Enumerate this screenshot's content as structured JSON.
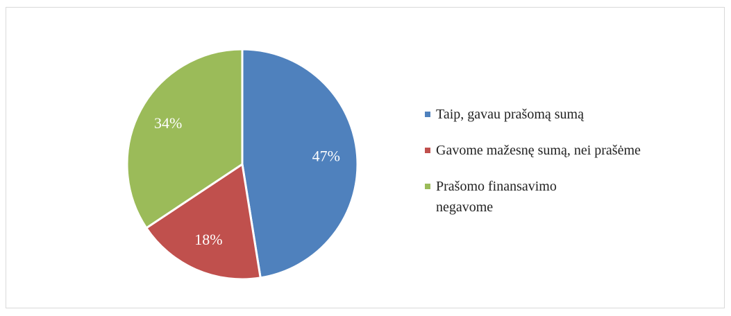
{
  "chart_data": {
    "type": "pie",
    "categories": [
      "Taip, gavau prašomą sumą",
      "Gavome mažesnę sumą, nei prašėme",
      "Prašomo finansavimo negavome"
    ],
    "values": [
      47,
      18,
      34
    ],
    "value_labels": [
      "47%",
      "18%",
      "34%"
    ],
    "colors": [
      "#4f81bd",
      "#c0504d",
      "#9bbb59"
    ],
    "legend": "right"
  }
}
